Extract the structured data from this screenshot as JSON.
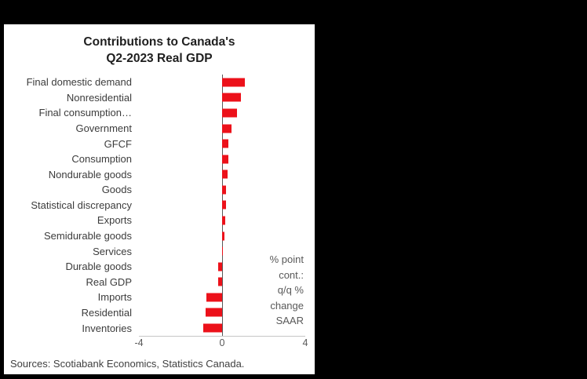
{
  "window": {
    "background_color": "#000000",
    "panel_color": "#ffffff"
  },
  "title": {
    "line1": "Contributions to Canada's",
    "line2": "Q2-2023 Real GDP"
  },
  "chart_data": {
    "type": "bar",
    "orientation": "horizontal",
    "title": "Contributions to Canada's Q2-2023 Real GDP",
    "categories": [
      "Final domestic demand",
      "Nonresidential",
      "Final consumption…",
      "Government",
      "GFCF",
      "Consumption",
      "Nondurable goods",
      "Goods",
      "Statistical discrepancy",
      "Exports",
      "Semidurable goods",
      "Services",
      "Durable goods",
      "Real GDP",
      "Imports",
      "Residential",
      "Inventories"
    ],
    "values": [
      1.1,
      0.9,
      0.7,
      0.45,
      0.3,
      0.3,
      0.25,
      0.2,
      0.2,
      0.15,
      0.1,
      0.05,
      -0.2,
      -0.2,
      -0.75,
      -0.8,
      -0.9
    ],
    "xlim": [
      -4,
      4
    ],
    "xticks": [
      -4,
      0,
      4
    ],
    "xtick_labels": [
      "-4",
      "0",
      "4"
    ],
    "bar_color": "#ec111a",
    "grid": false,
    "annotation_lines": [
      "% point",
      "cont.:",
      "q/q %",
      "change",
      "SAAR"
    ]
  },
  "footer": {
    "sources": "Sources: Scotiabank Economics, Statistics Canada."
  }
}
